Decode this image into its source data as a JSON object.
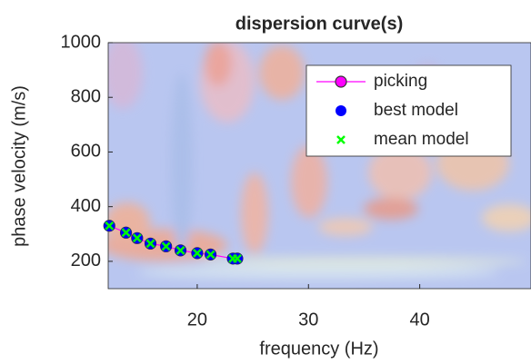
{
  "chart_data": {
    "type": "scatter",
    "title": "dispersion curve(s)",
    "x_label": "frequency (Hz)",
    "y_label": "phase velocity (m/s)",
    "xlim": [
      12,
      50
    ],
    "ylim": [
      100,
      1000
    ],
    "xticks": [
      20,
      30,
      40
    ],
    "yticks": [
      200,
      400,
      600,
      800,
      1000
    ],
    "series": [
      {
        "name": "picking",
        "color": "#ff00ff",
        "marker": "circle-line",
        "x": [
          12.1,
          13.6,
          14.6,
          15.8,
          17.2,
          18.5,
          20.0,
          21.2,
          23.2,
          23.6
        ],
        "values": [
          330,
          305,
          285,
          265,
          255,
          240,
          230,
          225,
          210,
          210
        ]
      },
      {
        "name": "best model",
        "color": "#0000ff",
        "marker": "dot",
        "x": [
          12.1,
          13.6,
          14.6,
          15.8,
          17.2,
          18.5,
          20.0,
          21.2,
          23.2,
          23.6
        ],
        "values": [
          330,
          305,
          285,
          265,
          255,
          240,
          230,
          225,
          210,
          210
        ]
      },
      {
        "name": "mean model",
        "color": "#00ff00",
        "marker": "cross",
        "x": [
          12.1,
          13.6,
          14.6,
          15.8,
          17.2,
          18.5,
          20.0,
          21.2,
          23.2,
          23.6
        ],
        "values": [
          330,
          305,
          285,
          265,
          255,
          240,
          230,
          225,
          210,
          210
        ]
      }
    ]
  }
}
